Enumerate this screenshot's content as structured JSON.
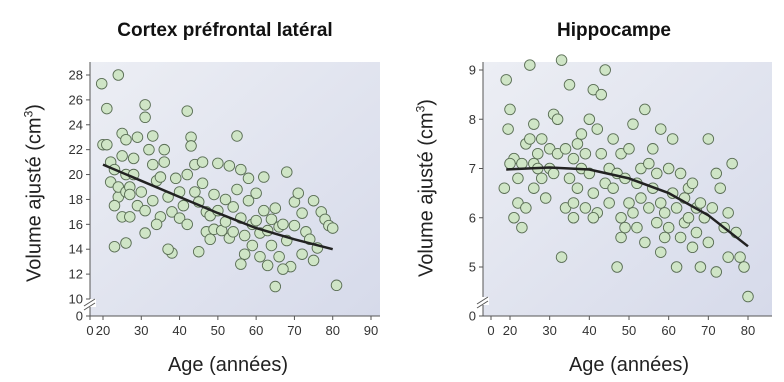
{
  "chart_data": [
    {
      "type": "scatter",
      "title": "Cortex préfrontal latéral",
      "xlabel": "Age (années)",
      "ylabel_text": "Volume ajusté (cm",
      "ylabel_sup": "3",
      "ylabel_close": ")",
      "xlim": [
        0,
        90
      ],
      "ylim": [
        0,
        29
      ],
      "y_axis_break": [
        0,
        10
      ],
      "xticks": [
        "0",
        "20",
        "30",
        "40",
        "50",
        "60",
        "70",
        "80",
        "90"
      ],
      "xtick_values": [
        0,
        20,
        30,
        40,
        50,
        60,
        70,
        80,
        90
      ],
      "yticks": [
        "0",
        "10",
        "12",
        "14",
        "16",
        "18",
        "20",
        "22",
        "24",
        "26",
        "28"
      ],
      "ytick_values": [
        0,
        10,
        12,
        14,
        16,
        18,
        20,
        22,
        24,
        26,
        28
      ],
      "grid": false,
      "point_color": "#cfe5c6",
      "point_edge": "#5a6e55",
      "trend_color": "#222222",
      "trend": [
        [
          20,
          20.8
        ],
        [
          30,
          19.5
        ],
        [
          40,
          18.2
        ],
        [
          50,
          16.9
        ],
        [
          60,
          15.7
        ],
        [
          70,
          14.8
        ],
        [
          80,
          14.0
        ]
      ],
      "points": [
        [
          18,
          27.3
        ],
        [
          21,
          25.3
        ],
        [
          24,
          28.0
        ],
        [
          20,
          22.4
        ],
        [
          22,
          21.0
        ],
        [
          23,
          20.4
        ],
        [
          22,
          19.4
        ],
        [
          24,
          18.2
        ],
        [
          21,
          22.4
        ],
        [
          25,
          23.3
        ],
        [
          26,
          22.8
        ],
        [
          25,
          21.5
        ],
        [
          26,
          20.0
        ],
        [
          24,
          19.0
        ],
        [
          23,
          17.5
        ],
        [
          25,
          16.6
        ],
        [
          26,
          18.6
        ],
        [
          27,
          19.0
        ],
        [
          28,
          20.0
        ],
        [
          28,
          21.3
        ],
        [
          27,
          16.6
        ],
        [
          23,
          14.2
        ],
        [
          26,
          14.5
        ],
        [
          29,
          17.5
        ],
        [
          30,
          18.6
        ],
        [
          31,
          25.6
        ],
        [
          31,
          24.6
        ],
        [
          32,
          22.0
        ],
        [
          33,
          23.1
        ],
        [
          33,
          20.8
        ],
        [
          34,
          19.5
        ],
        [
          33,
          17.9
        ],
        [
          35,
          16.6
        ],
        [
          35,
          19.8
        ],
        [
          36,
          21.0
        ],
        [
          34,
          16.0
        ],
        [
          36,
          22.0
        ],
        [
          31,
          15.3
        ],
        [
          37,
          18.2
        ],
        [
          38,
          17.0
        ],
        [
          38,
          13.7
        ],
        [
          39,
          19.7
        ],
        [
          40,
          18.6
        ],
        [
          40,
          16.5
        ],
        [
          41,
          17.5
        ],
        [
          42,
          20.0
        ],
        [
          42,
          25.1
        ],
        [
          43,
          23.0
        ],
        [
          43,
          22.3
        ],
        [
          44,
          18.6
        ],
        [
          44,
          20.8
        ],
        [
          45,
          17.8
        ],
        [
          42,
          16.0
        ],
        [
          46,
          19.3
        ],
        [
          46,
          21.0
        ],
        [
          47,
          17.0
        ],
        [
          47,
          15.4
        ],
        [
          48,
          16.7
        ],
        [
          48,
          14.8
        ],
        [
          49,
          15.6
        ],
        [
          49,
          18.4
        ],
        [
          50,
          20.9
        ],
        [
          50,
          17.1
        ],
        [
          45,
          13.8
        ],
        [
          51,
          15.5
        ],
        [
          52,
          16.2
        ],
        [
          52,
          18.0
        ],
        [
          53,
          14.9
        ],
        [
          53,
          20.7
        ],
        [
          54,
          15.4
        ],
        [
          54,
          17.4
        ],
        [
          55,
          23.1
        ],
        [
          55,
          18.8
        ],
        [
          56,
          20.4
        ],
        [
          56,
          16.5
        ],
        [
          57,
          15.1
        ],
        [
          57,
          13.6
        ],
        [
          58,
          17.9
        ],
        [
          58,
          19.7
        ],
        [
          59,
          16.0
        ],
        [
          59,
          14.3
        ],
        [
          60,
          18.5
        ],
        [
          60,
          16.3
        ],
        [
          61,
          15.3
        ],
        [
          61,
          13.4
        ],
        [
          62,
          17.1
        ],
        [
          62,
          19.8
        ],
        [
          63,
          15.5
        ],
        [
          63,
          12.7
        ],
        [
          64,
          16.4
        ],
        [
          64,
          14.3
        ],
        [
          65,
          17.3
        ],
        [
          65,
          11.0
        ],
        [
          66,
          15.8
        ],
        [
          66,
          13.4
        ],
        [
          67,
          16.0
        ],
        [
          68,
          20.2
        ],
        [
          68,
          14.7
        ],
        [
          69,
          12.6
        ],
        [
          70,
          15.9
        ],
        [
          70,
          17.8
        ],
        [
          71,
          18.5
        ],
        [
          72,
          13.6
        ],
        [
          72,
          16.9
        ],
        [
          73,
          15.4
        ],
        [
          74,
          14.8
        ],
        [
          75,
          17.9
        ],
        [
          75,
          13.1
        ],
        [
          76,
          14.1
        ],
        [
          77,
          17.0
        ],
        [
          78,
          16.4
        ],
        [
          79,
          15.9
        ],
        [
          80,
          15.7
        ],
        [
          81,
          11.1
        ],
        [
          37,
          14.0
        ],
        [
          29,
          23.0
        ],
        [
          27,
          18.4
        ],
        [
          31,
          17.1
        ],
        [
          56,
          12.8
        ],
        [
          67,
          12.4
        ]
      ]
    },
    {
      "type": "scatter",
      "title": "Hippocampe",
      "xlabel": "Age (années)",
      "ylabel_text": "Volume ajusté (cm",
      "ylabel_sup": "3",
      "ylabel_close": ")",
      "xlim": [
        10,
        82
      ],
      "ylim": [
        0,
        9.3
      ],
      "y_axis_break": [
        0,
        4
      ],
      "xticks": [
        "0",
        "20",
        "30",
        "40",
        "50",
        "60",
        "70",
        "80"
      ],
      "xtick_values": [
        10,
        20,
        30,
        40,
        50,
        60,
        70,
        80
      ],
      "yticks": [
        "0",
        "5",
        "6",
        "7",
        "8",
        "9"
      ],
      "ytick_values": [
        0,
        5,
        6,
        7,
        8,
        9
      ],
      "grid": false,
      "point_color": "#cfe5c6",
      "point_edge": "#5a6e55",
      "trend_color": "#222222",
      "trend": [
        [
          18,
          6.98
        ],
        [
          30,
          7.02
        ],
        [
          40,
          6.98
        ],
        [
          50,
          6.8
        ],
        [
          60,
          6.5
        ],
        [
          70,
          6.05
        ],
        [
          80,
          5.42
        ]
      ],
      "points": [
        [
          18,
          8.8
        ],
        [
          17,
          6.6
        ],
        [
          19,
          7.8
        ],
        [
          20,
          8.2
        ],
        [
          21,
          7.2
        ],
        [
          21,
          6.0
        ],
        [
          22,
          6.3
        ],
        [
          22,
          6.8
        ],
        [
          23,
          5.8
        ],
        [
          23,
          7.1
        ],
        [
          24,
          7.5
        ],
        [
          25,
          9.1
        ],
        [
          25,
          7.6
        ],
        [
          24,
          6.2
        ],
        [
          26,
          7.1
        ],
        [
          26,
          6.6
        ],
        [
          27,
          7.0
        ],
        [
          27,
          7.3
        ],
        [
          28,
          7.6
        ],
        [
          28,
          6.8
        ],
        [
          29,
          6.4
        ],
        [
          30,
          7.0
        ],
        [
          30,
          7.4
        ],
        [
          31,
          6.9
        ],
        [
          31,
          8.1
        ],
        [
          32,
          7.3
        ],
        [
          32,
          8.0
        ],
        [
          33,
          9.2
        ],
        [
          33,
          5.2
        ],
        [
          34,
          6.2
        ],
        [
          34,
          7.4
        ],
        [
          35,
          8.7
        ],
        [
          35,
          6.8
        ],
        [
          36,
          7.2
        ],
        [
          36,
          6.0
        ],
        [
          37,
          7.5
        ],
        [
          37,
          6.6
        ],
        [
          38,
          7.7
        ],
        [
          38,
          7.0
        ],
        [
          39,
          6.2
        ],
        [
          39,
          7.3
        ],
        [
          40,
          8.0
        ],
        [
          40,
          6.9
        ],
        [
          41,
          6.5
        ],
        [
          41,
          8.6
        ],
        [
          42,
          7.8
        ],
        [
          42,
          6.1
        ],
        [
          43,
          7.3
        ],
        [
          43,
          8.5
        ],
        [
          44,
          6.7
        ],
        [
          44,
          9.0
        ],
        [
          45,
          7.0
        ],
        [
          45,
          6.3
        ],
        [
          46,
          6.6
        ],
        [
          46,
          7.6
        ],
        [
          47,
          5.0
        ],
        [
          47,
          6.9
        ],
        [
          48,
          7.3
        ],
        [
          48,
          6.0
        ],
        [
          49,
          5.8
        ],
        [
          49,
          6.8
        ],
        [
          50,
          7.4
        ],
        [
          50,
          6.3
        ],
        [
          51,
          7.9
        ],
        [
          51,
          6.1
        ],
        [
          52,
          5.8
        ],
        [
          52,
          6.7
        ],
        [
          53,
          7.0
        ],
        [
          53,
          6.4
        ],
        [
          54,
          8.2
        ],
        [
          54,
          5.5
        ],
        [
          55,
          7.1
        ],
        [
          55,
          6.2
        ],
        [
          56,
          6.6
        ],
        [
          56,
          7.4
        ],
        [
          57,
          5.9
        ],
        [
          57,
          6.9
        ],
        [
          58,
          7.8
        ],
        [
          58,
          6.3
        ],
        [
          59,
          5.6
        ],
        [
          59,
          6.1
        ],
        [
          60,
          7.0
        ],
        [
          60,
          5.8
        ],
        [
          61,
          6.5
        ],
        [
          61,
          7.6
        ],
        [
          62,
          6.2
        ],
        [
          62,
          5.0
        ],
        [
          63,
          6.9
        ],
        [
          63,
          5.6
        ],
        [
          64,
          6.4
        ],
        [
          64,
          5.9
        ],
        [
          65,
          6.6
        ],
        [
          65,
          6.0
        ],
        [
          66,
          5.4
        ],
        [
          66,
          6.7
        ],
        [
          67,
          6.2
        ],
        [
          67,
          5.7
        ],
        [
          68,
          6.3
        ],
        [
          68,
          5.0
        ],
        [
          69,
          6.0
        ],
        [
          70,
          7.6
        ],
        [
          70,
          5.5
        ],
        [
          71,
          6.2
        ],
        [
          72,
          6.9
        ],
        [
          72,
          4.9
        ],
        [
          73,
          6.6
        ],
        [
          74,
          5.8
        ],
        [
          75,
          6.1
        ],
        [
          75,
          5.2
        ],
        [
          76,
          7.1
        ],
        [
          77,
          5.7
        ],
        [
          78,
          5.2
        ],
        [
          79,
          5.0
        ],
        [
          80,
          4.4
        ],
        [
          41,
          6.0
        ],
        [
          26,
          7.9
        ],
        [
          36,
          6.3
        ],
        [
          48,
          5.6
        ],
        [
          58,
          5.3
        ],
        [
          20,
          7.1
        ]
      ]
    }
  ]
}
